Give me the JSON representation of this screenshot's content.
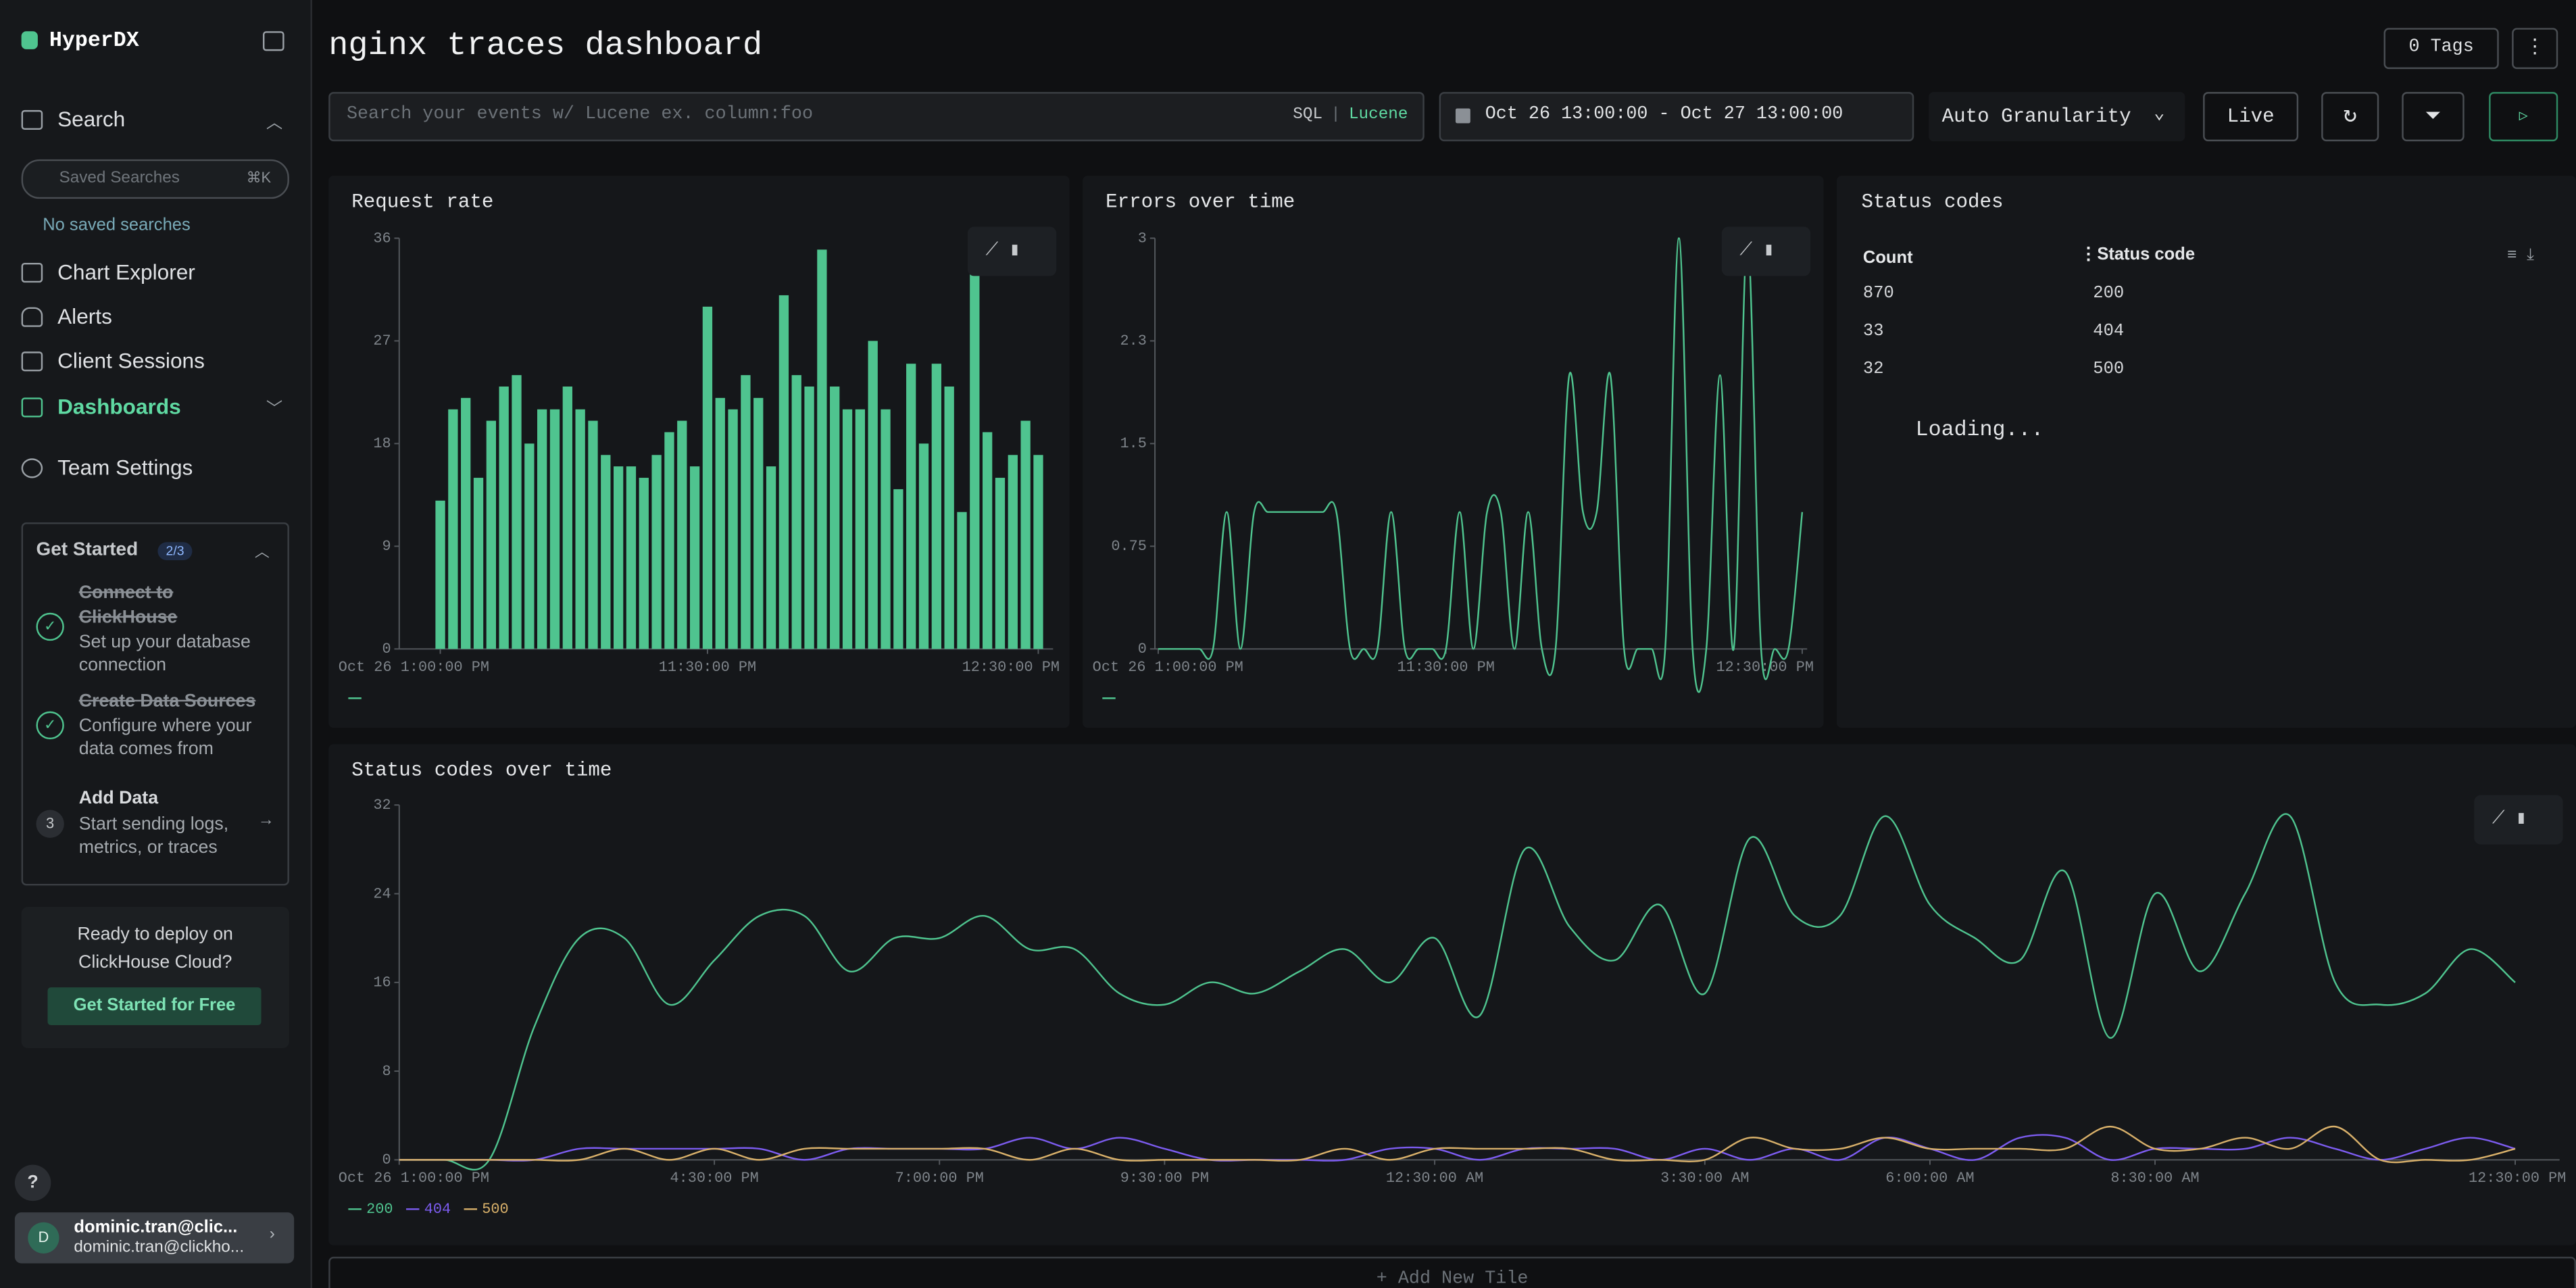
{
  "sidebar": {
    "brand": "HyperDX",
    "search": "Search",
    "saved_search_placeholder": "Saved Searches",
    "saved_search_shortcut": "⌘K",
    "no_saved": "No saved searches",
    "chart_explorer": "Chart Explorer",
    "alerts": "Alerts",
    "client_sessions": "Client Sessions",
    "dashboards": "Dashboards",
    "team_settings": "Team Settings",
    "get_started": {
      "title": "Get Started",
      "progress": "2/3",
      "steps": [
        {
          "title": "Connect to ClickHouse",
          "desc": "Set up your database connection"
        },
        {
          "title": "Create Data Sources",
          "desc": "Configure where your data comes from"
        },
        {
          "number": "3",
          "title": "Add Data",
          "desc": "Start sending logs, metrics, or traces"
        }
      ]
    },
    "deploy": {
      "text": "Ready to deploy on ClickHouse Cloud?",
      "button": "Get Started for Free"
    },
    "help": "?",
    "user": {
      "initial": "D",
      "name": "dominic.tran@clic...",
      "email": "dominic.tran@clickho..."
    }
  },
  "header": {
    "title": "nginx traces dashboard",
    "tags": "0 Tags"
  },
  "toolbar": {
    "search_placeholder": "Search your events w/ Lucene ex. column:foo",
    "sql": "SQL",
    "separator": "|",
    "lucene": "Lucene",
    "time_range": "Oct 26 13:00:00 - Oct 27 13:00:00",
    "granularity": "Auto Granularity",
    "live": "Live"
  },
  "charts": [
    {
      "type": "bar",
      "title": "Request rate",
      "color": "#4fc48f",
      "values": [
        13,
        21,
        22,
        15,
        20,
        23,
        24,
        18,
        21,
        21,
        23,
        21,
        20,
        17,
        16,
        16,
        15,
        17,
        19,
        20,
        16,
        30,
        22,
        21,
        24,
        22,
        16,
        31,
        24,
        23,
        35,
        23,
        21,
        21,
        27,
        21,
        14,
        25,
        18,
        25,
        23,
        12,
        33,
        19,
        15,
        17,
        20,
        17
      ],
      "ylim": [
        0,
        36
      ],
      "yticks": [
        0,
        9,
        18,
        27,
        36
      ],
      "xlim": [
        0,
        47
      ],
      "xticks": [
        {
          "value": 0,
          "label": "Oct 26 1:00:00 PM"
        },
        {
          "value": 21,
          "label": "11:30:00 PM"
        },
        {
          "value": 47,
          "label": "12:30:00 PM"
        }
      ]
    },
    {
      "type": "line",
      "title": "Errors over time",
      "color": "#4fc48f",
      "values": [
        0,
        0,
        0,
        0,
        0,
        1,
        0,
        1,
        1,
        1,
        1,
        1,
        1,
        1,
        0,
        0,
        0,
        1,
        0,
        0,
        0,
        0,
        1,
        0,
        1,
        1,
        0,
        1,
        0,
        0,
        2,
        1,
        1,
        2,
        0,
        0,
        0,
        0,
        3,
        0,
        0,
        2,
        0,
        3,
        0,
        0,
        0,
        1
      ],
      "ylim": [
        0,
        3
      ],
      "yticks": [
        0,
        0.75,
        1.5,
        {
          "value": 2.25,
          "label": "2.3"
        },
        3
      ],
      "xlim": [
        0,
        47
      ],
      "xticks": [
        {
          "value": 0,
          "label": "Oct 26 1:00:00 PM"
        },
        {
          "value": 21,
          "label": "11:30:00 PM"
        },
        {
          "value": 47,
          "label": "12:30:00 PM"
        }
      ]
    },
    {
      "type": "line",
      "title": "Status codes over time",
      "series": [
        {
          "name": "200",
          "color": "#4fc48f",
          "values": [
            0,
            0,
            0,
            12,
            20,
            20,
            14,
            18,
            22,
            22,
            17,
            20,
            20,
            22,
            19,
            19,
            15,
            14,
            16,
            15,
            17,
            19,
            16,
            20,
            13,
            28,
            21,
            18,
            23,
            15,
            29,
            22,
            22,
            31,
            23,
            20,
            18,
            26,
            11,
            24,
            17,
            24,
            31,
            16,
            14,
            15,
            19,
            16
          ]
        },
        {
          "name": "404",
          "color": "#7c5cf0",
          "values": [
            0,
            0,
            0,
            0,
            1,
            1,
            1,
            1,
            1,
            0,
            1,
            1,
            1,
            1,
            2,
            1,
            2,
            1,
            0,
            0,
            0,
            0,
            1,
            1,
            0,
            1,
            1,
            1,
            0,
            1,
            0,
            1,
            0,
            2,
            1,
            0,
            2,
            2,
            0,
            1,
            1,
            1,
            2,
            1,
            0,
            1,
            2,
            1
          ]
        },
        {
          "name": "500",
          "color": "#d8b06a",
          "values": [
            0,
            0,
            0,
            0,
            0,
            1,
            0,
            1,
            0,
            1,
            1,
            1,
            1,
            1,
            0,
            1,
            0,
            0,
            0,
            0,
            0,
            1,
            0,
            1,
            1,
            1,
            1,
            0,
            0,
            0,
            2,
            1,
            1,
            2,
            1,
            1,
            1,
            1,
            3,
            1,
            1,
            2,
            1,
            3,
            0,
            0,
            0,
            1
          ]
        }
      ],
      "ylim": [
        0,
        32
      ],
      "yticks": [
        0,
        8,
        16,
        24,
        32
      ],
      "xlim": [
        0,
        47
      ],
      "xticks": [
        {
          "value": 0,
          "label": "Oct 26 1:00:00 PM"
        },
        {
          "value": 7,
          "label": "4:30:00 PM"
        },
        {
          "value": 12,
          "label": "7:00:00 PM"
        },
        {
          "value": 17,
          "label": "9:30:00 PM"
        },
        {
          "value": 23,
          "label": "12:30:00 AM"
        },
        {
          "value": 29,
          "label": "3:30:00 AM"
        },
        {
          "value": 34,
          "label": "6:00:00 AM"
        },
        {
          "value": 39,
          "label": "8:30:00 AM"
        },
        {
          "value": 47,
          "label": "12:30:00 PM"
        }
      ]
    }
  ],
  "table": {
    "title": "Status codes",
    "columns": [
      "Count",
      "Status code"
    ],
    "rows": [
      [
        870,
        200
      ],
      [
        33,
        404
      ],
      [
        32,
        500
      ]
    ],
    "status": "Loading..."
  },
  "add_tile": "+ Add New Tile"
}
